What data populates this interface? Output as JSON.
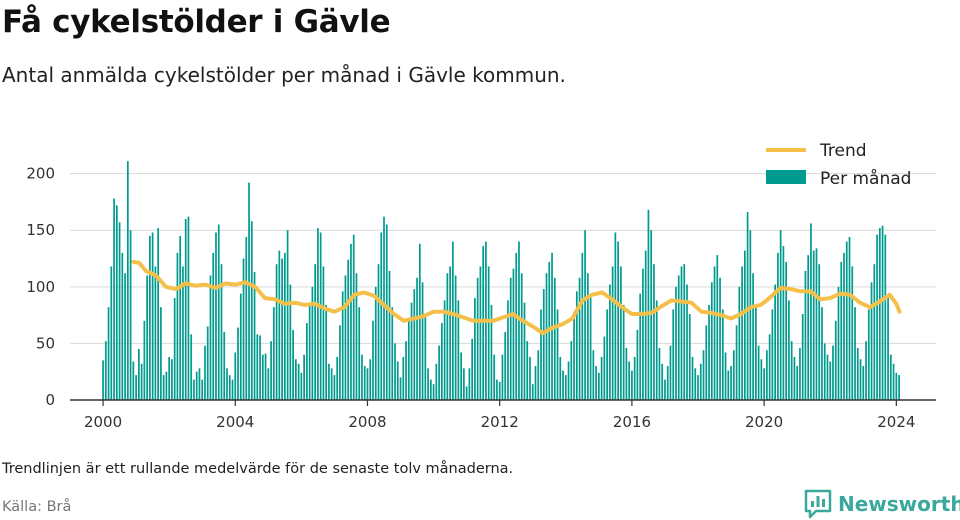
{
  "header": {
    "title": "Få cykelstölder i Gävle",
    "subtitle": "Antal anmälda cykelstölder per månad i Gävle kommun."
  },
  "footer": {
    "note": "Trendlinjen är ett rullande medelvärde för de senaste tolv månaderna.",
    "source": "Källa: Brå",
    "brand": "Newsworthy"
  },
  "colors": {
    "bars": "#009a8e",
    "trend": "#f5c04a",
    "grid": "#d9d9d9",
    "axis": "#333333",
    "brand": "#3aa89c"
  },
  "icons": {
    "brand_logo": "bar-chart-speech-bubble-icon"
  },
  "chart_data": {
    "type": "bar",
    "x_ticks": [
      2000,
      2004,
      2008,
      2012,
      2016,
      2020,
      2024
    ],
    "y_ticks": [
      0,
      50,
      100,
      150,
      200
    ],
    "ylim": [
      0,
      220
    ],
    "xlim": [
      1999.0,
      2025.2
    ],
    "grid": "horizontal",
    "legend_position": "top-right",
    "legend": [
      "Trend",
      "Per månad"
    ],
    "series": [
      {
        "name": "Per månad",
        "kind": "bar",
        "start": "2000-01",
        "step": "month",
        "values": [
          35,
          52,
          82,
          118,
          178,
          172,
          157,
          130,
          112,
          211,
          150,
          34,
          22,
          45,
          32,
          70,
          110,
          145,
          148,
          118,
          152,
          82,
          22,
          25,
          38,
          36,
          90,
          130,
          145,
          118,
          160,
          162,
          58,
          18,
          25,
          28,
          18,
          48,
          65,
          110,
          130,
          148,
          155,
          120,
          60,
          28,
          22,
          18,
          42,
          64,
          94,
          125,
          144,
          192,
          158,
          113,
          58,
          57,
          40,
          41,
          28,
          52,
          82,
          120,
          132,
          125,
          130,
          150,
          102,
          62,
          36,
          32,
          24,
          40,
          68,
          86,
          100,
          120,
          152,
          148,
          118,
          84,
          32,
          28,
          22,
          38,
          66,
          96,
          110,
          124,
          138,
          146,
          112,
          82,
          40,
          30,
          28,
          36,
          70,
          100,
          120,
          148,
          162,
          155,
          114,
          82,
          50,
          34,
          20,
          38,
          52,
          72,
          86,
          98,
          108,
          138,
          104,
          76,
          28,
          18,
          14,
          32,
          48,
          68,
          88,
          112,
          118,
          140,
          110,
          88,
          42,
          28,
          12,
          28,
          54,
          90,
          108,
          118,
          136,
          140,
          118,
          84,
          40,
          18,
          16,
          40,
          60,
          88,
          108,
          116,
          130,
          140,
          112,
          86,
          52,
          38,
          14,
          30,
          44,
          80,
          98,
          112,
          122,
          130,
          108,
          80,
          38,
          26,
          22,
          34,
          52,
          78,
          96,
          108,
          130,
          150,
          112,
          92,
          44,
          30,
          24,
          38,
          56,
          80,
          102,
          118,
          148,
          140,
          118,
          84,
          46,
          34,
          26,
          38,
          62,
          94,
          116,
          132,
          168,
          150,
          120,
          88,
          46,
          32,
          18,
          30,
          48,
          80,
          100,
          110,
          118,
          120,
          102,
          76,
          38,
          28,
          22,
          32,
          44,
          66,
          84,
          104,
          118,
          128,
          108,
          80,
          42,
          26,
          30,
          44,
          66,
          100,
          118,
          132,
          166,
          150,
          112,
          84,
          48,
          36,
          28,
          44,
          58,
          80,
          102,
          130,
          150,
          136,
          122,
          88,
          52,
          38,
          30,
          46,
          76,
          114,
          128,
          156,
          132,
          134,
          120,
          82,
          50,
          40,
          34,
          48,
          70,
          100,
          122,
          130,
          140,
          144,
          118,
          82,
          46,
          36,
          30,
          52,
          80,
          104,
          120,
          146,
          152,
          154,
          146,
          92,
          40,
          32,
          24,
          22
        ]
      },
      {
        "name": "Trend",
        "kind": "line",
        "points": [
          [
            2000.92,
            122
          ],
          [
            2001.1,
            121
          ],
          [
            2001.3,
            114
          ],
          [
            2001.6,
            110
          ],
          [
            2001.9,
            100
          ],
          [
            2002.2,
            98
          ],
          [
            2002.5,
            103
          ],
          [
            2002.8,
            101
          ],
          [
            2003.1,
            102
          ],
          [
            2003.4,
            99
          ],
          [
            2003.7,
            103
          ],
          [
            2004.0,
            102
          ],
          [
            2004.3,
            104
          ],
          [
            2004.6,
            100
          ],
          [
            2004.9,
            90
          ],
          [
            2005.2,
            89
          ],
          [
            2005.5,
            85
          ],
          [
            2005.8,
            86
          ],
          [
            2006.1,
            84
          ],
          [
            2006.4,
            85
          ],
          [
            2006.7,
            81
          ],
          [
            2007.0,
            78
          ],
          [
            2007.3,
            82
          ],
          [
            2007.6,
            93
          ],
          [
            2007.9,
            95
          ],
          [
            2008.2,
            92
          ],
          [
            2008.5,
            84
          ],
          [
            2008.8,
            76
          ],
          [
            2009.1,
            70
          ],
          [
            2009.4,
            72
          ],
          [
            2009.7,
            74
          ],
          [
            2010.0,
            78
          ],
          [
            2010.3,
            78
          ],
          [
            2010.6,
            76
          ],
          [
            2010.9,
            73
          ],
          [
            2011.2,
            70
          ],
          [
            2011.5,
            70
          ],
          [
            2011.8,
            70
          ],
          [
            2012.1,
            73
          ],
          [
            2012.4,
            76
          ],
          [
            2012.7,
            70
          ],
          [
            2013.0,
            65
          ],
          [
            2013.3,
            59
          ],
          [
            2013.6,
            64
          ],
          [
            2013.9,
            67
          ],
          [
            2014.2,
            72
          ],
          [
            2014.5,
            88
          ],
          [
            2014.8,
            93
          ],
          [
            2015.1,
            95
          ],
          [
            2015.4,
            89
          ],
          [
            2015.7,
            82
          ],
          [
            2016.0,
            76
          ],
          [
            2016.3,
            76
          ],
          [
            2016.6,
            77
          ],
          [
            2016.9,
            83
          ],
          [
            2017.2,
            88
          ],
          [
            2017.5,
            87
          ],
          [
            2017.8,
            86
          ],
          [
            2018.1,
            78
          ],
          [
            2018.4,
            77
          ],
          [
            2018.7,
            75
          ],
          [
            2019.0,
            72
          ],
          [
            2019.3,
            76
          ],
          [
            2019.6,
            82
          ],
          [
            2019.9,
            84
          ],
          [
            2020.2,
            91
          ],
          [
            2020.5,
            99
          ],
          [
            2020.8,
            98
          ],
          [
            2021.1,
            96
          ],
          [
            2021.4,
            96
          ],
          [
            2021.7,
            89
          ],
          [
            2022.0,
            90
          ],
          [
            2022.3,
            94
          ],
          [
            2022.6,
            93
          ],
          [
            2022.9,
            86
          ],
          [
            2023.2,
            82
          ],
          [
            2023.5,
            87
          ],
          [
            2023.8,
            93
          ],
          [
            2024.0,
            85
          ],
          [
            2024.1,
            78
          ]
        ]
      }
    ]
  }
}
